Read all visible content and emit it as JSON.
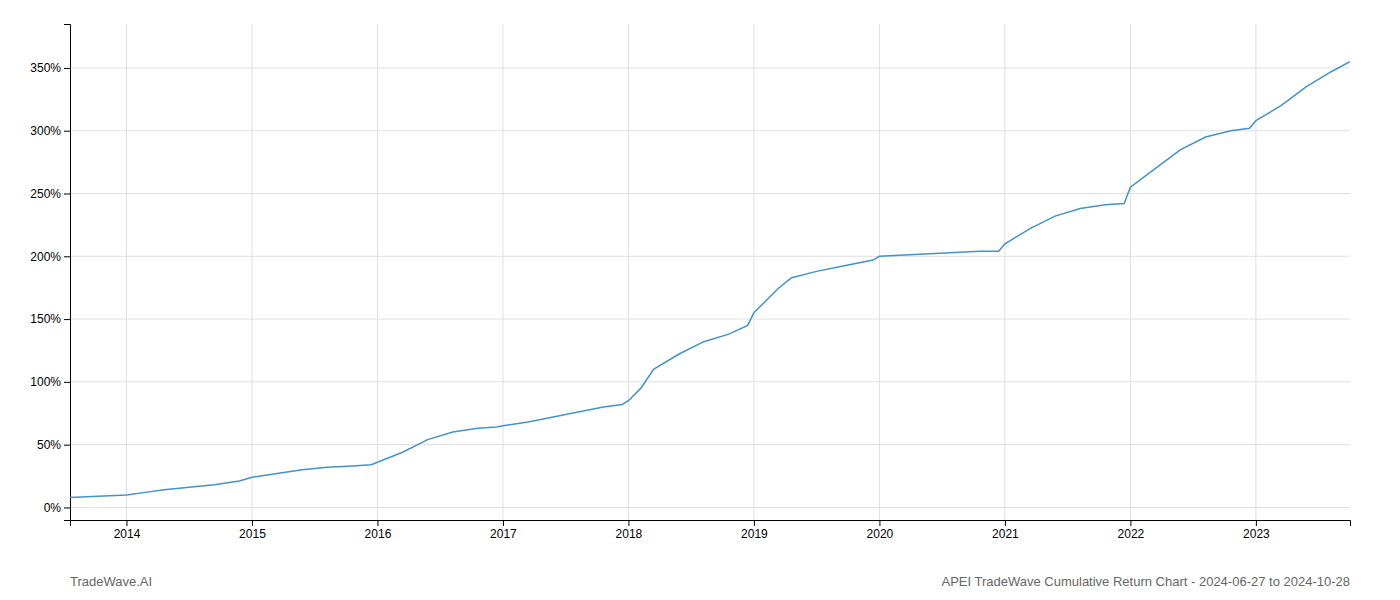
{
  "chart_data": {
    "type": "line",
    "x": [
      2013.55,
      2014.0,
      2014.15,
      2014.3,
      2014.5,
      2014.7,
      2014.9,
      2015.0,
      2015.2,
      2015.4,
      2015.6,
      2015.8,
      2015.95,
      2016.0,
      2016.2,
      2016.4,
      2016.6,
      2016.8,
      2016.95,
      2017.0,
      2017.2,
      2017.4,
      2017.6,
      2017.8,
      2017.95,
      2018.0,
      2018.1,
      2018.2,
      2018.4,
      2018.6,
      2018.8,
      2018.95,
      2019.0,
      2019.1,
      2019.2,
      2019.3,
      2019.5,
      2019.7,
      2019.95,
      2020.0,
      2020.2,
      2020.4,
      2020.6,
      2020.8,
      2020.95,
      2021.0,
      2021.2,
      2021.4,
      2021.6,
      2021.8,
      2021.95,
      2022.0,
      2022.2,
      2022.4,
      2022.6,
      2022.8,
      2022.95,
      2023.0,
      2023.2,
      2023.4,
      2023.6,
      2023.75
    ],
    "series": [
      {
        "color": "#4393c7",
        "values": [
          8,
          10,
          12,
          14,
          16,
          18,
          21,
          24,
          27,
          30,
          32,
          33,
          34,
          36,
          44,
          54,
          60,
          63,
          64,
          65,
          68,
          72,
          76,
          80,
          82,
          85,
          95,
          110,
          122,
          132,
          138,
          145,
          155,
          165,
          175,
          183,
          188,
          192,
          197,
          200,
          201,
          202,
          203,
          204,
          204,
          210,
          222,
          232,
          238,
          241,
          242,
          255,
          270,
          285,
          295,
          300,
          302,
          308,
          320,
          335,
          347,
          355
        ]
      }
    ],
    "xlim": [
      2013.55,
      2023.75
    ],
    "xticks": [
      2014,
      2015,
      2016,
      2017,
      2018,
      2019,
      2020,
      2021,
      2022,
      2023
    ],
    "ylim": [
      -10,
      385
    ],
    "yticks": [
      {
        "value": 0,
        "label": "0%"
      },
      {
        "value": 50,
        "label": "50%"
      },
      {
        "value": 100,
        "label": "100%"
      },
      {
        "value": 150,
        "label": "150%"
      },
      {
        "value": 200,
        "label": "200%"
      },
      {
        "value": 250,
        "label": "250%"
      },
      {
        "value": 300,
        "label": "300%"
      },
      {
        "value": 350,
        "label": "350%"
      }
    ],
    "grid": true,
    "annotations": [
      "TradeWave.AI",
      "APEI TradeWave Cumulative Return Chart - 2024-06-27 to 2024-10-28"
    ]
  }
}
